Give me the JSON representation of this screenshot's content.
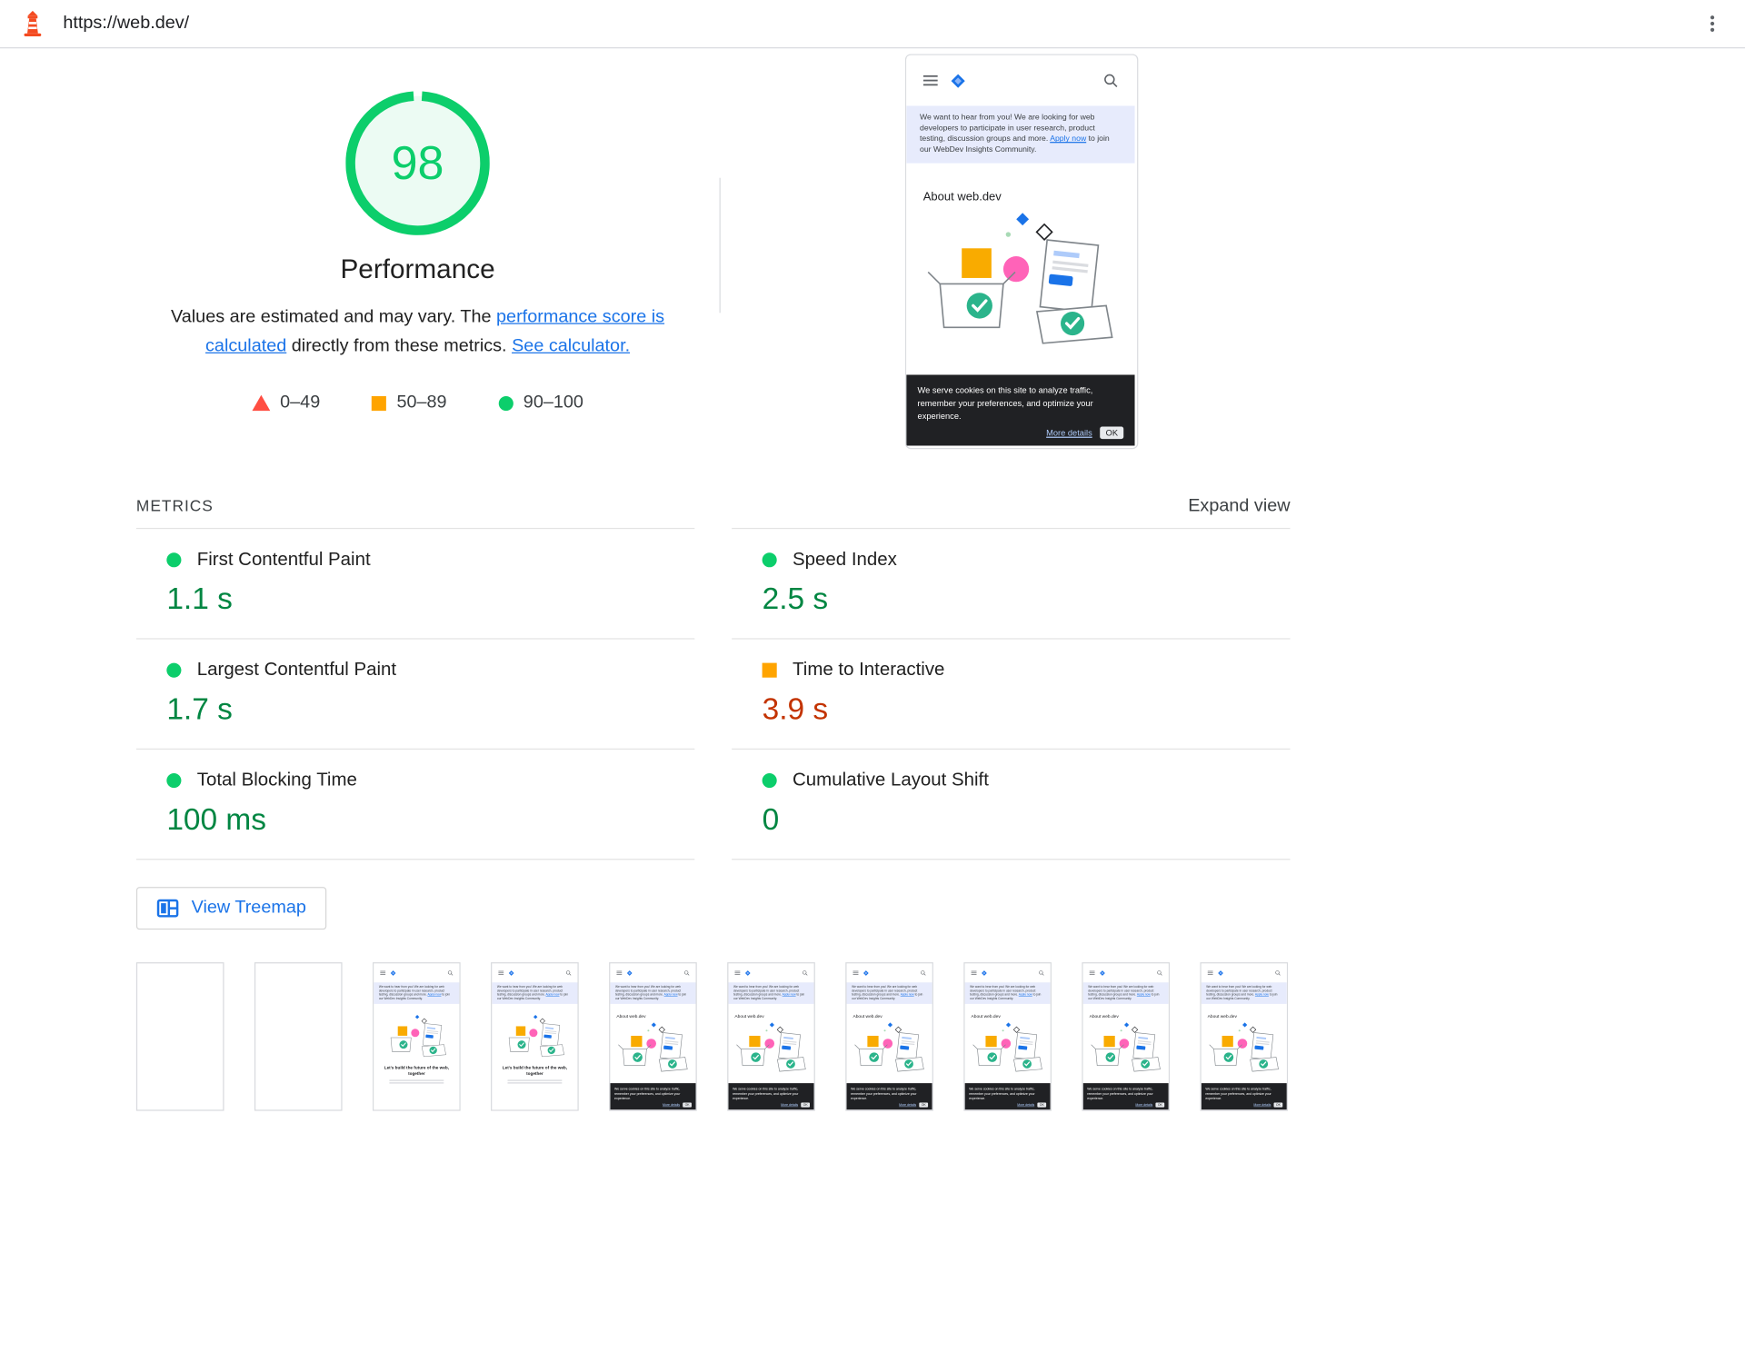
{
  "topbar": {
    "url": "https://web.dev/"
  },
  "score": {
    "value": "98",
    "label": "Performance",
    "desc_pre": "Values are estimated and may vary. The ",
    "desc_link1": "performance score is calculated",
    "desc_mid": " directly from these metrics. ",
    "desc_link2": "See calculator.",
    "legend": [
      {
        "range": "0–49",
        "rating": "fail"
      },
      {
        "range": "50–89",
        "rating": "average"
      },
      {
        "range": "90–100",
        "rating": "pass"
      }
    ]
  },
  "metrics": {
    "title": "METRICS",
    "expand": "Expand view",
    "items": [
      {
        "name": "First Contentful Paint",
        "value": "1.1 s",
        "status": "pass"
      },
      {
        "name": "Speed Index",
        "value": "2.5 s",
        "status": "pass"
      },
      {
        "name": "Largest Contentful Paint",
        "value": "1.7 s",
        "status": "pass"
      },
      {
        "name": "Time to Interactive",
        "value": "3.9 s",
        "status": "average"
      },
      {
        "name": "Total Blocking Time",
        "value": "100 ms",
        "status": "pass"
      },
      {
        "name": "Cumulative Layout Shift",
        "value": "0",
        "status": "pass"
      }
    ]
  },
  "treemap": {
    "label": "View Treemap"
  },
  "preview": {
    "banner_pre": "We want to hear from you! We are looking for web developers to participate in user research, product testing, discussion groups and more. ",
    "banner_link": "Apply now",
    "banner_post": " to join our WebDev Insights Community.",
    "about": "About web.dev",
    "cookie_text": "We serve cookies on this site to analyze traffic, remember your preferences, and optimize your experience.",
    "more_details": "More details",
    "ok": "OK",
    "loading_title": "Let's build the future of the web, together"
  },
  "filmstrip": {
    "frames": [
      "blank",
      "blank",
      "loading",
      "loading",
      "loaded",
      "loaded",
      "loaded",
      "loaded",
      "loaded",
      "loaded"
    ]
  },
  "colors": {
    "pass": "#0cce6b",
    "average": "#ffa400",
    "fail": "#ff4e42",
    "pass_text": "#018642",
    "average_text": "#c33300",
    "link": "#1a73e8"
  }
}
